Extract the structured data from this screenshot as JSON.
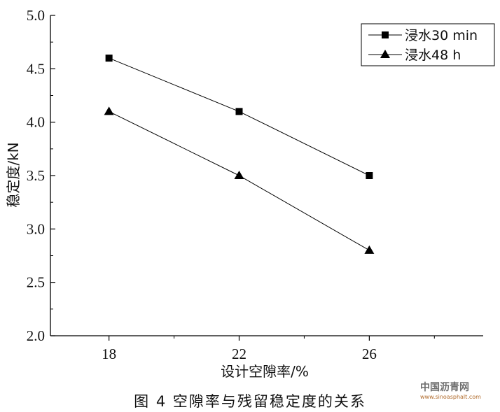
{
  "chart_data": {
    "type": "line",
    "x": [
      18,
      22,
      26
    ],
    "series": [
      {
        "name": "浸水30 min",
        "marker": "square",
        "values": [
          4.6,
          4.1,
          3.5
        ]
      },
      {
        "name": "浸水48 h",
        "marker": "triangle",
        "values": [
          4.1,
          3.5,
          2.8
        ]
      }
    ],
    "xlabel": "设计空隙率/%",
    "ylabel": "稳定度/kN",
    "xlim": [
      16.2,
      29.5
    ],
    "ylim": [
      2.0,
      5.0
    ],
    "xticks": [
      "18",
      "22",
      "26"
    ],
    "yticks": [
      "2.0",
      "2.5",
      "3.0",
      "3.5",
      "4.0",
      "4.5",
      "5.0"
    ],
    "grid": false,
    "legend_position": "top-right",
    "line_color": "#000000"
  },
  "caption": "图 4   空隙率与残留稳定度的关系",
  "watermark": {
    "main": "中国沥青网",
    "url": "www.sinoasphalt.com"
  }
}
